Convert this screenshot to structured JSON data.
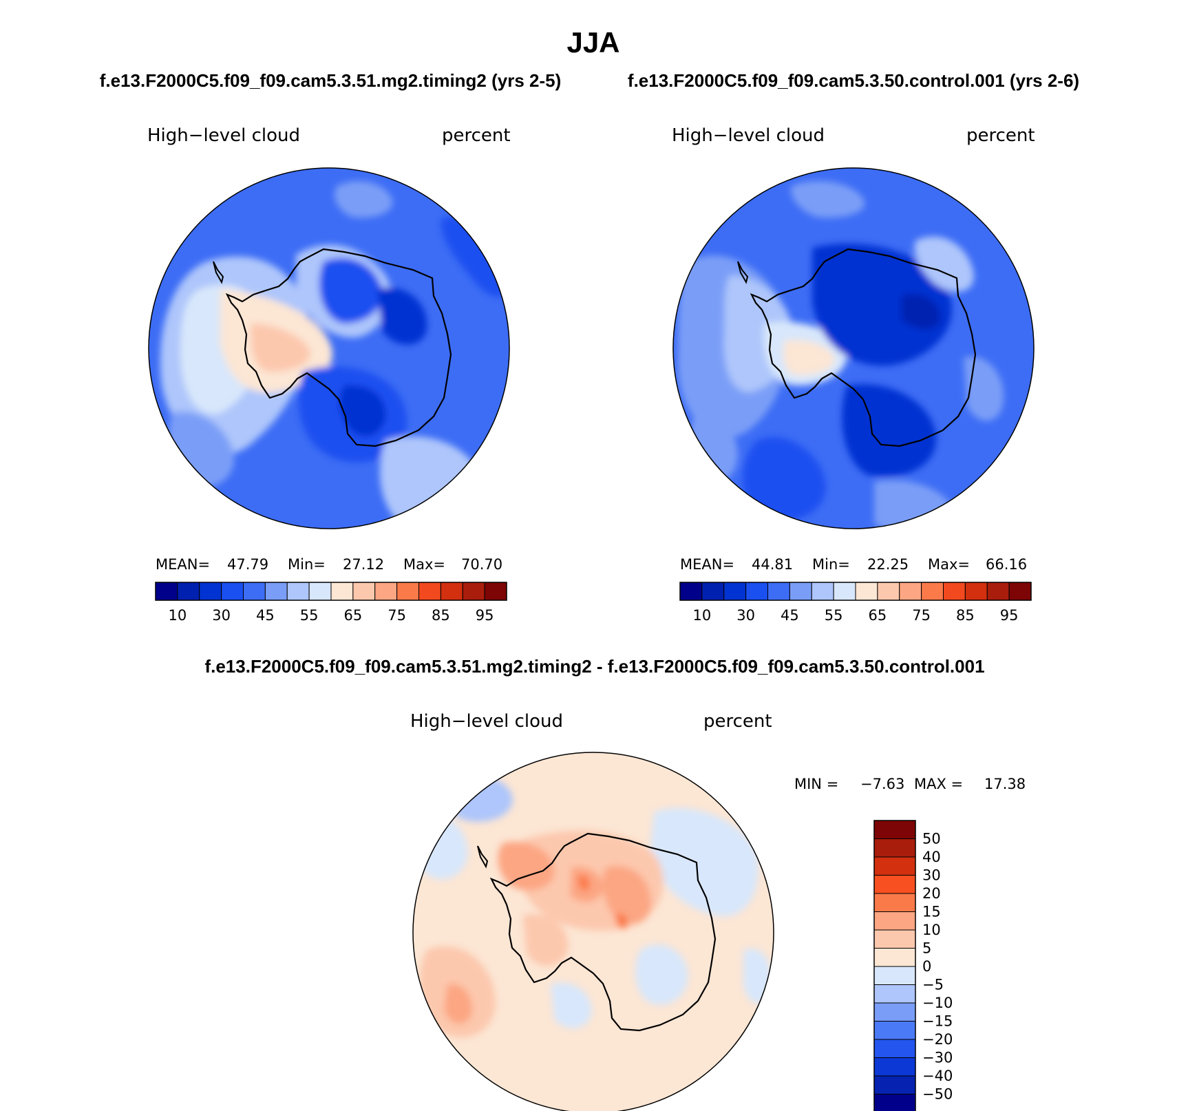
{
  "title": "JJA",
  "panels": [
    {
      "case": "f.e13.F2000C5.f09_f09.cam5.3.51.mg2.timing2 (yrs 2-5)",
      "variable": "High−level cloud",
      "units": "percent",
      "stats": {
        "mean_label": "MEAN=",
        "mean": "47.79",
        "min_label": "Min=",
        "min": "27.12",
        "max_label": "Max=",
        "max": "70.70"
      }
    },
    {
      "case": "f.e13.F2000C5.f09_f09.cam5.3.50.control.001 (yrs 2-6)",
      "variable": "High−level cloud",
      "units": "percent",
      "stats": {
        "mean_label": "MEAN=",
        "mean": "44.81",
        "min_label": "Min=",
        "min": "22.25",
        "max_label": "Max=",
        "max": "66.16"
      }
    },
    {
      "case": "f.e13.F2000C5.f09_f09.cam5.3.51.mg2.timing2 - f.e13.F2000C5.f09_f09.cam5.3.50.control.001",
      "variable": "High−level cloud",
      "units": "percent",
      "stats": {
        "min_label": "MIN =",
        "min": "−7.63",
        "max_label": "MAX =",
        "max": "17.38"
      }
    }
  ],
  "abs_colorbar": {
    "colors": [
      "#00008b",
      "#0020b0",
      "#0033d1",
      "#1a4ff0",
      "#3d6df5",
      "#7a9ef7",
      "#aec6fb",
      "#d8e7fb",
      "#fce6d4",
      "#fcc8ad",
      "#fca683",
      "#fb7a4a",
      "#f2491f",
      "#d2300f",
      "#a91d0c",
      "#7d0505"
    ],
    "labels": [
      "10",
      "30",
      "45",
      "55",
      "65",
      "75",
      "85",
      "95"
    ]
  },
  "diff_colorbar": {
    "colors": [
      "#7d0505",
      "#a91d0c",
      "#d2300f",
      "#f85020",
      "#fb7a4a",
      "#fca683",
      "#fcc8ad",
      "#fce6d4",
      "#d8e7fb",
      "#aec6fb",
      "#7a9ef7",
      "#4a7af5",
      "#2455ee",
      "#0c38d6",
      "#0522b0",
      "#00008b"
    ],
    "labels": [
      "50",
      "40",
      "30",
      "20",
      "15",
      "10",
      "5",
      "0",
      "−5",
      "−10",
      "−15",
      "−20",
      "−30",
      "−40",
      "−50"
    ]
  },
  "chart_data": [
    {
      "type": "heatmap",
      "title": "High−level cloud",
      "units": "percent",
      "projection": "south polar stereographic",
      "region": "Antarctica / Southern Ocean",
      "contour_levels": [
        5,
        10,
        15,
        20,
        25,
        30,
        35,
        40,
        45,
        50,
        55,
        60,
        65,
        70,
        75,
        80,
        85,
        90,
        95
      ],
      "mean": 47.79,
      "min": 27.12,
      "max": 70.7
    },
    {
      "type": "heatmap",
      "title": "High−level cloud",
      "units": "percent",
      "projection": "south polar stereographic",
      "region": "Antarctica / Southern Ocean",
      "contour_levels": [
        5,
        10,
        15,
        20,
        25,
        30,
        35,
        40,
        45,
        50,
        55,
        60,
        65,
        70,
        75,
        80,
        85,
        90,
        95
      ],
      "mean": 44.81,
      "min": 22.25,
      "max": 66.16
    },
    {
      "type": "heatmap",
      "title": "High−level cloud",
      "units": "percent",
      "projection": "south polar stereographic",
      "region": "Antarctica / Southern Ocean",
      "contour_levels": [
        -50,
        -40,
        -30,
        -20,
        -15,
        -10,
        -5,
        0,
        5,
        10,
        15,
        20,
        30,
        40,
        50
      ],
      "min": -7.63,
      "max": 17.38
    }
  ]
}
